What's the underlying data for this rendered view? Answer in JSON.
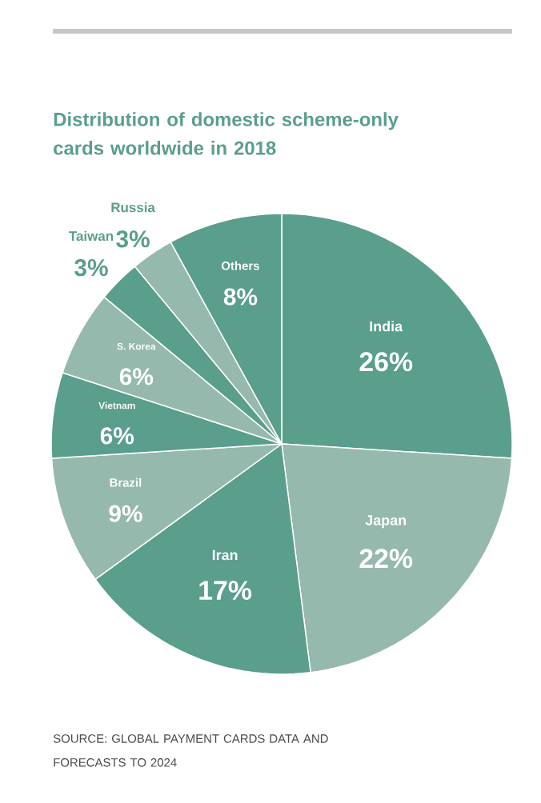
{
  "chart_data": {
    "type": "pie",
    "title": "Distribution of domestic scheme-only cards worldwide in 2018",
    "categories": [
      "India",
      "Japan",
      "Iran",
      "Brazil",
      "Vietnam",
      "S. Korea",
      "Taiwan",
      "Russia",
      "Others"
    ],
    "values": [
      26,
      22,
      17,
      9,
      6,
      6,
      3,
      3,
      8
    ],
    "value_labels": [
      "26%",
      "22%",
      "17%",
      "9%",
      "6%",
      "6%",
      "3%",
      "3%",
      "8%"
    ],
    "colors": [
      "#5a9e8c",
      "#96b9ad",
      "#5a9e8c",
      "#96b9ad",
      "#5a9e8c",
      "#96b9ad",
      "#5a9e8c",
      "#96b9ad",
      "#5a9e8c"
    ],
    "annotations": [
      "SOURCE: GLOBAL PAYMENT CARDS DATA AND FORECASTS TO 2024"
    ]
  }
}
